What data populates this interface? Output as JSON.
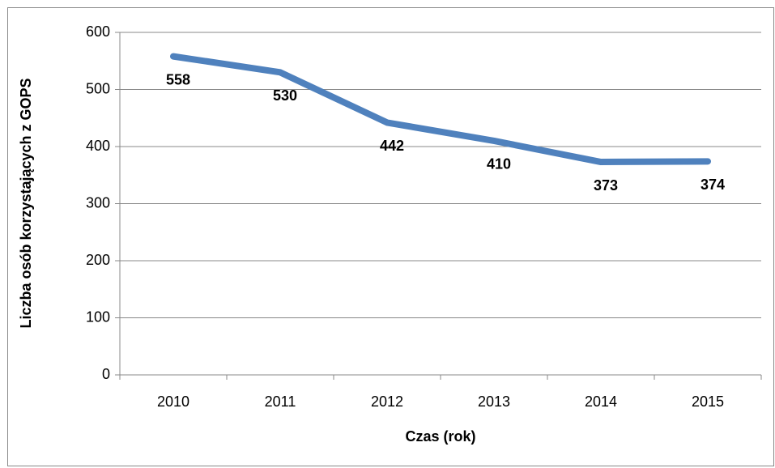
{
  "chart_data": {
    "type": "line",
    "x_label": "Czas (rok)",
    "y_label": "Liczba osób korzystających z GOPS",
    "categories": [
      "2010",
      "2011",
      "2012",
      "2013",
      "2014",
      "2015"
    ],
    "series": [
      {
        "color": "#4f81bd",
        "values": [
          558,
          530,
          442,
          410,
          373,
          374
        ]
      }
    ],
    "ylim": [
      0,
      600
    ],
    "yticks": [
      0,
      100,
      200,
      300,
      400,
      500,
      600
    ],
    "grid": true,
    "data_labels": true
  }
}
